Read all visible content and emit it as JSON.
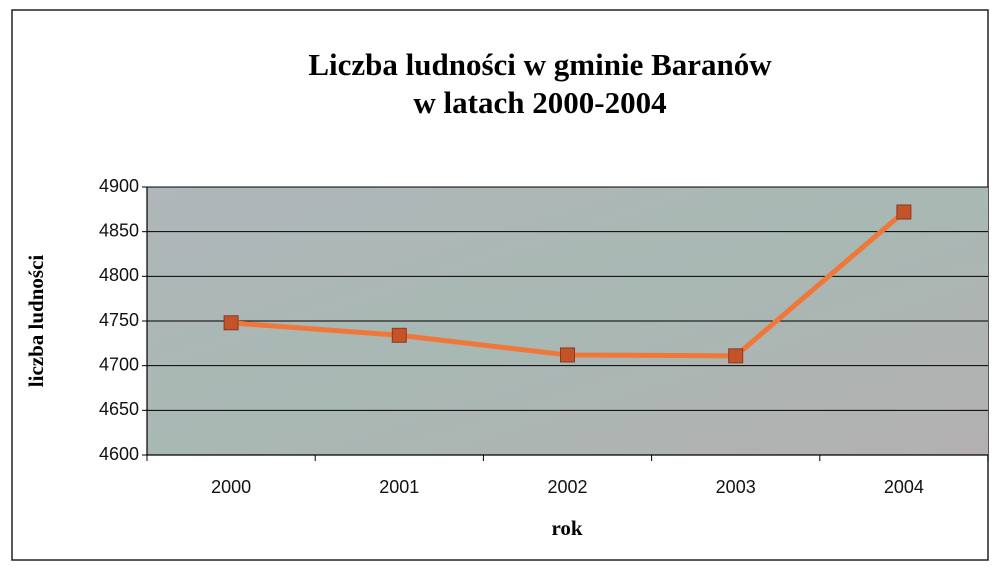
{
  "chart_data": {
    "type": "line",
    "title": [
      "Liczba ludności w gminie Baranów",
      "w latach 2000-2004"
    ],
    "x_label": "rok",
    "y_label": "liczba ludności",
    "categories": [
      "2000",
      "2001",
      "2002",
      "2003",
      "2004"
    ],
    "series": [
      {
        "name": "liczba ludności",
        "color": "#f0773a",
        "marker_color": "#c4532a",
        "values": [
          4748,
          4734,
          4712,
          4711,
          4872
        ]
      }
    ],
    "ylim": [
      4600,
      4900
    ],
    "yticks": [
      4600,
      4650,
      4700,
      4750,
      4800,
      4850,
      4900
    ],
    "grid": true,
    "legend": false
  }
}
